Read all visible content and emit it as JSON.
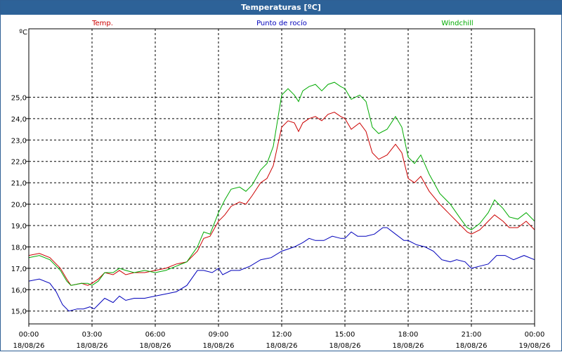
{
  "window": {
    "title": "Temperaturas [ºC]"
  },
  "chart_data": {
    "type": "line",
    "title": "Temperaturas [ºC]",
    "unit_label": "ºC",
    "xlim": [
      0,
      24
    ],
    "ylim": [
      14.4,
      28.2
    ],
    "yticks": [
      15.0,
      16.0,
      17.0,
      18.0,
      19.0,
      20.0,
      21.0,
      22.0,
      23.0,
      24.0,
      25.0
    ],
    "ytick_labels": [
      "15,0",
      "16,0",
      "17,0",
      "18,0",
      "19,0",
      "20,0",
      "21,0",
      "22,0",
      "23,0",
      "24,0",
      "25,0"
    ],
    "xticks": [
      {
        "h": 0,
        "time": "00:00",
        "date": "18/08/26"
      },
      {
        "h": 3,
        "time": "03:00",
        "date": "18/08/26"
      },
      {
        "h": 6,
        "time": "06:00",
        "date": "18/08/26"
      },
      {
        "h": 9,
        "time": "09:00",
        "date": "18/08/26"
      },
      {
        "h": 12,
        "time": "12:00",
        "date": "18/08/26"
      },
      {
        "h": 15,
        "time": "15:00",
        "date": "18/08/26"
      },
      {
        "h": 18,
        "time": "18:00",
        "date": "18/08/26"
      },
      {
        "h": 21,
        "time": "21:00",
        "date": "18/08/26"
      },
      {
        "h": 24,
        "time": "00:00",
        "date": "19/08/26"
      }
    ],
    "grid": true,
    "series": [
      {
        "name": "Temp.",
        "color": "#cc0000",
        "points": [
          [
            0,
            17.6
          ],
          [
            0.5,
            17.7
          ],
          [
            1.0,
            17.5
          ],
          [
            1.5,
            17.0
          ],
          [
            1.8,
            16.5
          ],
          [
            2.0,
            16.2
          ],
          [
            2.5,
            16.3
          ],
          [
            2.8,
            16.2
          ],
          [
            3.0,
            16.3
          ],
          [
            3.3,
            16.5
          ],
          [
            3.6,
            16.8
          ],
          [
            4.0,
            16.7
          ],
          [
            4.3,
            16.9
          ],
          [
            4.6,
            16.7
          ],
          [
            5.0,
            16.8
          ],
          [
            5.5,
            16.8
          ],
          [
            6.0,
            16.9
          ],
          [
            6.5,
            17.0
          ],
          [
            7.0,
            17.2
          ],
          [
            7.5,
            17.3
          ],
          [
            8.0,
            17.8
          ],
          [
            8.3,
            18.4
          ],
          [
            8.6,
            18.5
          ],
          [
            9.0,
            19.2
          ],
          [
            9.3,
            19.5
          ],
          [
            9.6,
            19.9
          ],
          [
            10.0,
            20.1
          ],
          [
            10.3,
            20.0
          ],
          [
            10.6,
            20.4
          ],
          [
            11.0,
            21.0
          ],
          [
            11.3,
            21.2
          ],
          [
            11.6,
            21.8
          ],
          [
            12.0,
            23.6
          ],
          [
            12.3,
            23.9
          ],
          [
            12.6,
            23.8
          ],
          [
            12.8,
            23.4
          ],
          [
            13.0,
            23.8
          ],
          [
            13.3,
            24.0
          ],
          [
            13.6,
            24.1
          ],
          [
            13.9,
            23.9
          ],
          [
            14.2,
            24.2
          ],
          [
            14.5,
            24.3
          ],
          [
            14.8,
            24.1
          ],
          [
            15.0,
            24.0
          ],
          [
            15.3,
            23.5
          ],
          [
            15.7,
            23.8
          ],
          [
            16.0,
            23.4
          ],
          [
            16.3,
            22.4
          ],
          [
            16.6,
            22.1
          ],
          [
            17.0,
            22.3
          ],
          [
            17.4,
            22.8
          ],
          [
            17.7,
            22.4
          ],
          [
            18.0,
            21.2
          ],
          [
            18.3,
            21.0
          ],
          [
            18.6,
            21.3
          ],
          [
            19.0,
            20.6
          ],
          [
            19.5,
            20.0
          ],
          [
            20.0,
            19.5
          ],
          [
            20.5,
            19.0
          ],
          [
            20.8,
            18.7
          ],
          [
            21.0,
            18.6
          ],
          [
            21.4,
            18.8
          ],
          [
            21.8,
            19.2
          ],
          [
            22.1,
            19.5
          ],
          [
            22.5,
            19.2
          ],
          [
            22.8,
            18.9
          ],
          [
            23.2,
            18.9
          ],
          [
            23.6,
            19.2
          ],
          [
            24.0,
            18.8
          ]
        ]
      },
      {
        "name": "Punto de rocío",
        "color": "#0000bb",
        "points": [
          [
            0,
            16.4
          ],
          [
            0.5,
            16.5
          ],
          [
            1.0,
            16.3
          ],
          [
            1.3,
            15.9
          ],
          [
            1.6,
            15.3
          ],
          [
            1.9,
            15.0
          ],
          [
            2.3,
            15.1
          ],
          [
            2.6,
            15.1
          ],
          [
            2.9,
            15.2
          ],
          [
            3.1,
            15.1
          ],
          [
            3.3,
            15.3
          ],
          [
            3.6,
            15.6
          ],
          [
            4.0,
            15.4
          ],
          [
            4.3,
            15.7
          ],
          [
            4.6,
            15.5
          ],
          [
            5.0,
            15.6
          ],
          [
            5.5,
            15.6
          ],
          [
            6.0,
            15.7
          ],
          [
            6.5,
            15.8
          ],
          [
            7.0,
            15.9
          ],
          [
            7.5,
            16.2
          ],
          [
            8.0,
            16.9
          ],
          [
            8.3,
            16.9
          ],
          [
            8.7,
            16.8
          ],
          [
            9.0,
            17.0
          ],
          [
            9.2,
            16.7
          ],
          [
            9.6,
            16.9
          ],
          [
            10.0,
            16.9
          ],
          [
            10.5,
            17.1
          ],
          [
            11.0,
            17.4
          ],
          [
            11.5,
            17.5
          ],
          [
            12.0,
            17.8
          ],
          [
            12.3,
            17.9
          ],
          [
            12.6,
            18.0
          ],
          [
            13.0,
            18.2
          ],
          [
            13.3,
            18.4
          ],
          [
            13.6,
            18.3
          ],
          [
            14.0,
            18.3
          ],
          [
            14.4,
            18.5
          ],
          [
            14.8,
            18.4
          ],
          [
            15.0,
            18.4
          ],
          [
            15.3,
            18.7
          ],
          [
            15.6,
            18.5
          ],
          [
            16.0,
            18.5
          ],
          [
            16.4,
            18.6
          ],
          [
            16.8,
            18.9
          ],
          [
            17.0,
            18.9
          ],
          [
            17.4,
            18.6
          ],
          [
            17.8,
            18.3
          ],
          [
            18.0,
            18.3
          ],
          [
            18.4,
            18.1
          ],
          [
            18.8,
            18.0
          ],
          [
            19.2,
            17.8
          ],
          [
            19.6,
            17.4
          ],
          [
            20.0,
            17.3
          ],
          [
            20.3,
            17.4
          ],
          [
            20.7,
            17.3
          ],
          [
            21.0,
            17.0
          ],
          [
            21.4,
            17.1
          ],
          [
            21.8,
            17.2
          ],
          [
            22.2,
            17.6
          ],
          [
            22.6,
            17.6
          ],
          [
            23.0,
            17.4
          ],
          [
            23.5,
            17.6
          ],
          [
            24.0,
            17.4
          ]
        ]
      },
      {
        "name": "Windchill",
        "color": "#00aa00",
        "points": [
          [
            0,
            17.5
          ],
          [
            0.5,
            17.6
          ],
          [
            1.0,
            17.4
          ],
          [
            1.5,
            16.9
          ],
          [
            1.8,
            16.4
          ],
          [
            2.0,
            16.2
          ],
          [
            2.5,
            16.3
          ],
          [
            2.8,
            16.3
          ],
          [
            3.0,
            16.2
          ],
          [
            3.3,
            16.4
          ],
          [
            3.6,
            16.8
          ],
          [
            4.0,
            16.8
          ],
          [
            4.3,
            17.0
          ],
          [
            4.6,
            16.9
          ],
          [
            5.0,
            16.8
          ],
          [
            5.5,
            16.9
          ],
          [
            6.0,
            16.8
          ],
          [
            6.5,
            16.9
          ],
          [
            7.0,
            17.1
          ],
          [
            7.5,
            17.3
          ],
          [
            8.0,
            18.0
          ],
          [
            8.3,
            18.7
          ],
          [
            8.6,
            18.6
          ],
          [
            9.0,
            19.6
          ],
          [
            9.3,
            20.2
          ],
          [
            9.6,
            20.7
          ],
          [
            10.0,
            20.8
          ],
          [
            10.3,
            20.6
          ],
          [
            10.6,
            20.9
          ],
          [
            11.0,
            21.6
          ],
          [
            11.3,
            21.9
          ],
          [
            11.6,
            22.7
          ],
          [
            12.0,
            25.1
          ],
          [
            12.3,
            25.4
          ],
          [
            12.6,
            25.1
          ],
          [
            12.8,
            24.8
          ],
          [
            13.0,
            25.3
          ],
          [
            13.3,
            25.5
          ],
          [
            13.6,
            25.6
          ],
          [
            13.9,
            25.3
          ],
          [
            14.2,
            25.6
          ],
          [
            14.5,
            25.7
          ],
          [
            14.8,
            25.5
          ],
          [
            15.0,
            25.4
          ],
          [
            15.3,
            24.9
          ],
          [
            15.7,
            25.1
          ],
          [
            16.0,
            24.8
          ],
          [
            16.3,
            23.6
          ],
          [
            16.6,
            23.3
          ],
          [
            17.0,
            23.5
          ],
          [
            17.4,
            24.1
          ],
          [
            17.7,
            23.6
          ],
          [
            18.0,
            22.2
          ],
          [
            18.3,
            21.9
          ],
          [
            18.6,
            22.3
          ],
          [
            19.0,
            21.4
          ],
          [
            19.5,
            20.5
          ],
          [
            20.0,
            20.0
          ],
          [
            20.5,
            19.3
          ],
          [
            20.8,
            18.9
          ],
          [
            21.0,
            18.8
          ],
          [
            21.4,
            19.1
          ],
          [
            21.8,
            19.6
          ],
          [
            22.1,
            20.2
          ],
          [
            22.5,
            19.8
          ],
          [
            22.8,
            19.4
          ],
          [
            23.2,
            19.3
          ],
          [
            23.6,
            19.6
          ],
          [
            24.0,
            19.2
          ]
        ]
      }
    ]
  }
}
